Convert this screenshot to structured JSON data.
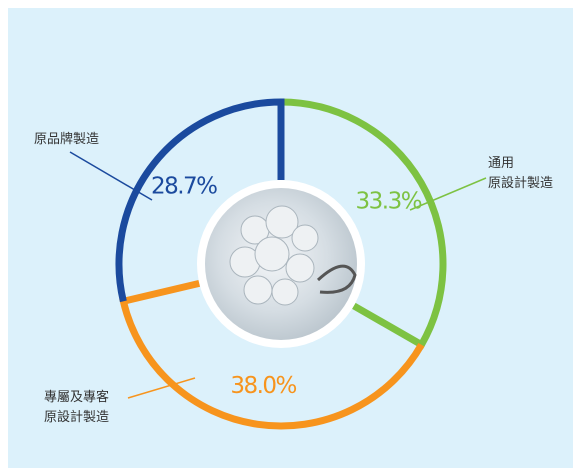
{
  "chart_data": {
    "type": "donut",
    "categories": [
      "通用\n原設計製造",
      "專屬及專客\n原設計製造",
      "原品牌製造"
    ],
    "values": [
      33.3,
      38.0,
      28.7
    ],
    "value_labels": [
      "33.3%",
      "38.0%",
      "28.7%"
    ],
    "colors": [
      "#7dc242",
      "#f7941d",
      "#1b4a9e"
    ]
  }
}
